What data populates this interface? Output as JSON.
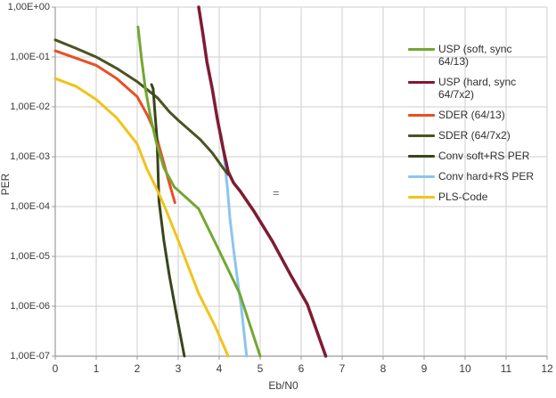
{
  "figure": {
    "background": "#ffffff",
    "grid_color": "#cdcdcd",
    "axis_color": "#9b9b9b",
    "text_color": "#3a3a3a",
    "annotation": "="
  },
  "axes": {
    "x_title": "Eb/N0",
    "y_title": "PER",
    "x_ticks": [
      "0",
      "1",
      "2",
      "3",
      "4",
      "5",
      "6",
      "7",
      "8",
      "9",
      "10",
      "11",
      "12"
    ],
    "y_ticks": [
      "1,00E+00",
      "1,00E-01",
      "1,00E-02",
      "1,00E-03",
      "1,00E-04",
      "1,00E-05",
      "1,00E-06",
      "1,00E-07"
    ]
  },
  "legend": {
    "items": [
      {
        "label": "USP (soft, sync 64/13)",
        "color": "#74a634"
      },
      {
        "label": "USP (hard, sync 64/7x2)",
        "color": "#7f1b33"
      },
      {
        "label": "SDER (64/13)",
        "color": "#e94f25"
      },
      {
        "label": "SDER (64/7x2)",
        "color": "#4a5420"
      },
      {
        "label": "Conv soft+RS PER",
        "color": "#39451a"
      },
      {
        "label": "Conv hard+RS PER",
        "color": "#8cc5ee"
      },
      {
        "label": "PLS-Code",
        "color": "#f0c419"
      }
    ]
  },
  "chart_data": {
    "type": "line",
    "title": "",
    "xlabel": "Eb/N0",
    "ylabel": "PER",
    "xlim": [
      0,
      12
    ],
    "ylim": [
      1e-07,
      1
    ],
    "y_scale": "log",
    "grid": true,
    "legend_position": "right-inside",
    "y_tick_format": "1,00E+00 style (comma decimal, one tick per decade)",
    "series": [
      {
        "name": "USP (soft, sync 64/13)",
        "color": "#74a634",
        "points": [
          [
            2.02,
            0.4
          ],
          [
            2.1,
            0.1
          ],
          [
            2.2,
            0.023
          ],
          [
            2.32,
            0.0065
          ],
          [
            2.46,
            0.002
          ],
          [
            2.65,
            0.0006
          ],
          [
            2.9,
            0.00025
          ],
          [
            3.2,
            0.00015
          ],
          [
            3.5,
            9e-05
          ],
          [
            4.0,
            1.3e-05
          ],
          [
            4.5,
            1.8e-06
          ],
          [
            5.0,
            1e-07
          ]
        ]
      },
      {
        "name": "USP (hard, sync 64/7x2)",
        "color": "#7f1b33",
        "points": [
          [
            3.5,
            1.0
          ],
          [
            3.6,
            0.3
          ],
          [
            3.7,
            0.08
          ],
          [
            3.83,
            0.023
          ],
          [
            3.95,
            0.006
          ],
          [
            4.1,
            0.0014
          ],
          [
            4.22,
            0.0005
          ],
          [
            4.35,
            0.0003
          ],
          [
            4.52,
            0.0002
          ],
          [
            4.85,
            8e-05
          ],
          [
            5.3,
            2e-05
          ],
          [
            5.76,
            4e-06
          ],
          [
            6.15,
            1.1e-06
          ],
          [
            6.6,
            1e-07
          ]
        ]
      },
      {
        "name": "SDER (64/13)",
        "color": "#e94f25",
        "points": [
          [
            0,
            0.133
          ],
          [
            0.5,
            0.095
          ],
          [
            1,
            0.068
          ],
          [
            1.5,
            0.037
          ],
          [
            2,
            0.016
          ],
          [
            2.26,
            0.0065
          ],
          [
            2.46,
            0.0027
          ],
          [
            2.63,
            0.00085
          ],
          [
            2.78,
            0.0003
          ],
          [
            2.92,
            0.00012
          ]
        ]
      },
      {
        "name": "SDER (64/7x2)",
        "color": "#4a5420",
        "points": [
          [
            0,
            0.22
          ],
          [
            0.5,
            0.15
          ],
          [
            1,
            0.1
          ],
          [
            1.5,
            0.059
          ],
          [
            2,
            0.032
          ],
          [
            2.5,
            0.015
          ],
          [
            2.78,
            0.008
          ],
          [
            3.0,
            0.0054
          ],
          [
            3.54,
            0.0022
          ],
          [
            3.83,
            0.0012
          ],
          [
            4.09,
            0.0006
          ],
          [
            4.22,
            0.00044
          ]
        ]
      },
      {
        "name": "Conv soft+RS PER",
        "color": "#39451a",
        "points": [
          [
            2.35,
            0.028
          ],
          [
            2.39,
            0.023
          ],
          [
            2.43,
            0.008
          ],
          [
            2.48,
            0.0024
          ],
          [
            2.5,
            0.00085
          ],
          [
            2.53,
            0.00013
          ],
          [
            2.65,
            2.1e-05
          ],
          [
            2.78,
            4.3e-06
          ],
          [
            2.96,
            6.6e-07
          ],
          [
            3.15,
            1e-07
          ]
        ]
      },
      {
        "name": "Conv hard+RS PER",
        "color": "#8cc5ee",
        "points": [
          [
            4.04,
            0.0029
          ],
          [
            4.11,
            0.0012
          ],
          [
            4.15,
            0.00056
          ],
          [
            4.2,
            0.00024
          ],
          [
            4.26,
            6e-05
          ],
          [
            4.35,
            1.4e-05
          ],
          [
            4.43,
            4.3e-06
          ],
          [
            4.54,
            9.5e-07
          ],
          [
            4.67,
            1e-07
          ]
        ]
      },
      {
        "name": "PLS-Code",
        "color": "#f0c419",
        "points": [
          [
            0,
            0.037
          ],
          [
            0.5,
            0.026
          ],
          [
            1,
            0.014
          ],
          [
            1.5,
            0.006
          ],
          [
            2,
            0.0018
          ],
          [
            2.24,
            0.00056
          ],
          [
            2.46,
            0.00024
          ],
          [
            2.67,
            0.0001
          ],
          [
            3.0,
            2.1e-05
          ],
          [
            3.5,
            1.8e-06
          ],
          [
            3.9,
            4e-07
          ],
          [
            4.22,
            1e-07
          ]
        ]
      }
    ]
  }
}
